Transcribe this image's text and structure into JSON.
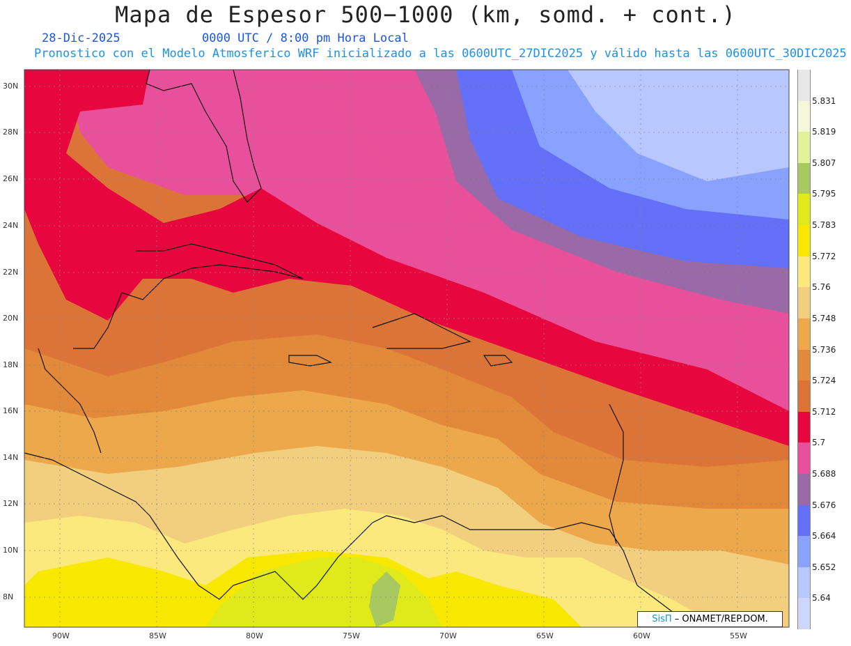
{
  "title": "Mapa de Espesor 500−1000 (km, somd. + cont.)",
  "date": "28-Dic-2025",
  "time": "0000 UTC / 8:00 pm Hora Local",
  "forecast_info": "Pronostico con el Modelo Atmosferico WRF inicializado a las 0600UTC_27DIC2025 y válido hasta las  0600UTC_30DIC2025",
  "lat_labels": [
    "30N",
    "28N",
    "26N",
    "24N",
    "22N",
    "20N",
    "18N",
    "16N",
    "14N",
    "12N",
    "10N",
    "8N"
  ],
  "lon_labels": [
    "90W",
    "85W",
    "80W",
    "75W",
    "70W",
    "65W",
    "60W",
    "55W"
  ],
  "colorbar": {
    "labels": [
      "5.831",
      "5.819",
      "5.807",
      "5.795",
      "5.783",
      "5.772",
      "5.76",
      "5.748",
      "5.736",
      "5.724",
      "5.712",
      "5.7",
      "5.688",
      "5.676",
      "5.664",
      "5.652",
      "5.64"
    ],
    "colors": [
      "#e8e8e8",
      "#f4f7d8",
      "#e2f29a",
      "#a8c860",
      "#e0ea1a",
      "#f8e800",
      "#fbe97e",
      "#f2cf7e",
      "#eca84a",
      "#e2893a",
      "#dc7438",
      "#e8063e",
      "#e8509c",
      "#9a6aa6",
      "#6470f8",
      "#8aa2ff",
      "#b8c8ff",
      "#ccd6ff"
    ]
  },
  "credit": {
    "brand": "SisΠ",
    "text": " – ONAMET/REP.DOM."
  },
  "colors": {
    "title": "#222222",
    "date": "#1a55e0",
    "info": "#1e90e6"
  }
}
